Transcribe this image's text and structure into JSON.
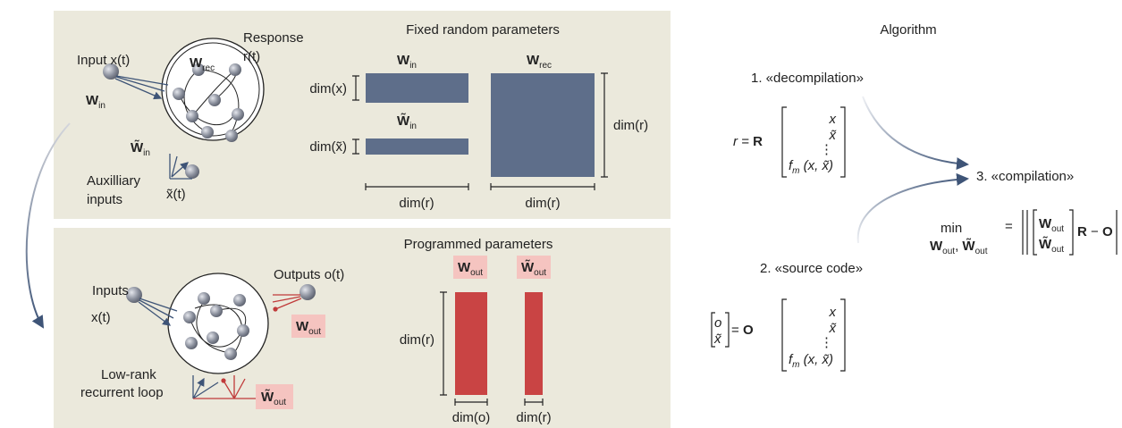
{
  "top_panel": {
    "network": {
      "input_label": "Input x(t)",
      "response_label": "Response",
      "response_symbol": "r(t)",
      "w_in": {
        "symbol": "W",
        "sub": "in"
      },
      "w_rec": {
        "symbol": "W",
        "sub": "rec"
      },
      "w_in_aux": {
        "symbol": "W̃",
        "sub": "in"
      },
      "aux_symbol": "x̃(t)",
      "aux_label": [
        "Auxilliary",
        "inputs"
      ]
    },
    "matrices": {
      "title": "Fixed random parameters",
      "w_in": {
        "symbol": "W",
        "sub": "in"
      },
      "w_rec": {
        "symbol": "W",
        "sub": "rec"
      },
      "w_in_aux": {
        "symbol": "W̃",
        "sub": "in"
      },
      "dim_x": "dim(x)",
      "dim_x_aux": "dim(x̃)",
      "dim_r_in": "dim(r)",
      "dim_r_rec_width": "dim(r)",
      "dim_r_rec_height": "dim(r)"
    }
  },
  "bottom_panel": {
    "network": {
      "inputs_label": "Inputs",
      "inputs_symbol": "x(t)",
      "outputs_label": "Outputs o(t)",
      "w_out": {
        "symbol": "W",
        "sub": "out"
      },
      "w_out_aux": {
        "symbol": "W̃",
        "sub": "out"
      },
      "loop_label": [
        "Low-rank",
        "recurrent loop"
      ]
    },
    "matrices": {
      "title": "Programmed parameters",
      "w_out": {
        "symbol": "W",
        "sub": "out"
      },
      "w_out_aux": {
        "symbol": "W̃",
        "sub": "out"
      },
      "dim_r_height": "dim(r)",
      "dim_o": "dim(o)",
      "dim_r_width": "dim(r)"
    }
  },
  "algorithm": {
    "title": "Algorithm",
    "step1": "1. «decompilation»",
    "step1_lhs": "r =",
    "step1_matrix": "R",
    "step1_vector": [
      "x",
      "x̃",
      "⋮"
    ],
    "step1_last": {
      "f": "f",
      "sub": "m",
      "args": " (x, x̃)"
    },
    "step2": "2. «source code»",
    "step2_lhs": [
      "o",
      "x̃"
    ],
    "step2_equals": "=",
    "step2_matrix": "O",
    "step2_vector": [
      "x",
      "x̃",
      "⋮"
    ],
    "step2_last": {
      "f": "f",
      "sub": "m",
      "args": " (x, x̃)"
    },
    "step3": "3. «compilation»",
    "min": "min",
    "min_under": [
      {
        "symbol": "W",
        "sub": "out"
      },
      {
        "symbol": "W̃",
        "sub": "out"
      }
    ],
    "equals": "=",
    "norm_top": {
      "symbol": "W",
      "sub": "out"
    },
    "norm_bottom": {
      "symbol": "W̃",
      "sub": "out"
    },
    "norm_rest": {
      "r": "R",
      "minus": " − ",
      "o": "O"
    }
  }
}
